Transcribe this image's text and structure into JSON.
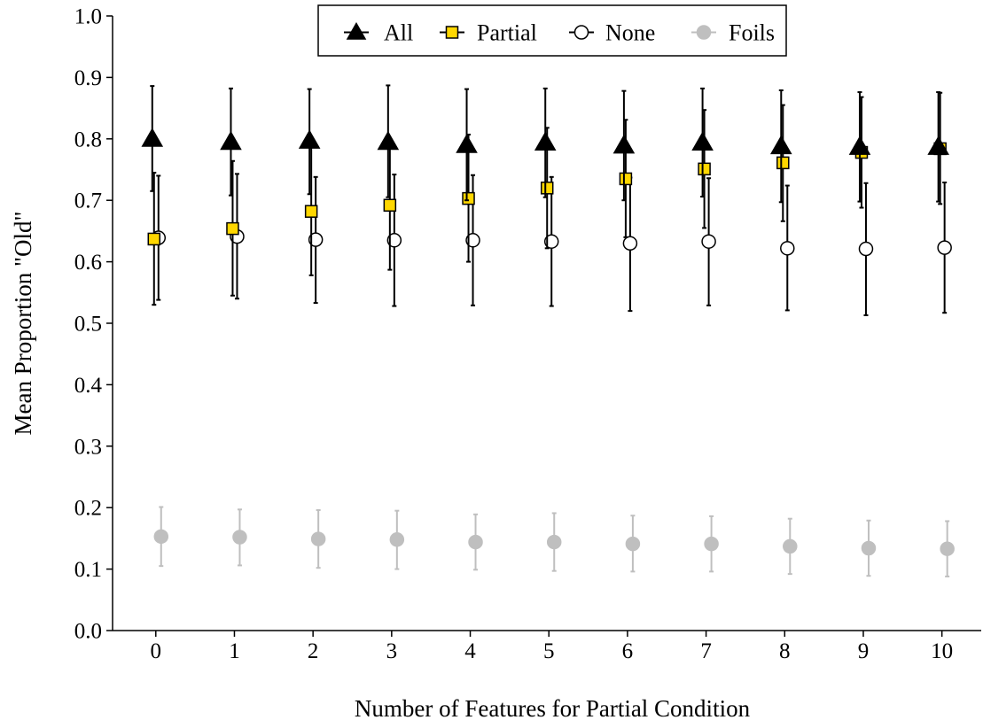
{
  "chart_data": {
    "type": "scatter",
    "title": "",
    "xlabel": "Number of Features for Partial Condition",
    "ylabel": "Mean Proportion \"Old\"",
    "x": [
      0,
      1,
      2,
      3,
      4,
      5,
      6,
      7,
      8,
      9,
      10
    ],
    "xlim": [
      -0.55,
      10.5
    ],
    "ylim": [
      0.0,
      1.0
    ],
    "xticks": [
      "0",
      "1",
      "2",
      "3",
      "4",
      "5",
      "6",
      "7",
      "8",
      "9",
      "10"
    ],
    "yticks": [
      "0.0",
      "0.1",
      "0.2",
      "0.3",
      "0.4",
      "0.5",
      "0.6",
      "0.7",
      "0.8",
      "0.9",
      "1.0"
    ],
    "grid": false,
    "legend_position": "top-center",
    "series": [
      {
        "name": "All",
        "marker": "triangle",
        "color": "#000000",
        "fill": "#000000",
        "values": [
          0.8,
          0.795,
          0.797,
          0.795,
          0.79,
          0.794,
          0.789,
          0.794,
          0.788,
          0.787,
          0.787
        ],
        "err_low": [
          0.715,
          0.708,
          0.71,
          0.705,
          0.7,
          0.705,
          0.7,
          0.706,
          0.697,
          0.698,
          0.698
        ],
        "err_high": [
          0.886,
          0.882,
          0.881,
          0.887,
          0.881,
          0.882,
          0.878,
          0.882,
          0.879,
          0.876,
          0.876
        ]
      },
      {
        "name": "Partial",
        "marker": "square",
        "color": "#000000",
        "fill": "#ffd700",
        "values": [
          0.637,
          0.654,
          0.682,
          0.692,
          0.703,
          0.72,
          0.735,
          0.751,
          0.761,
          0.778,
          0.784
        ],
        "err_low": [
          0.53,
          0.545,
          0.578,
          0.587,
          0.6,
          0.622,
          0.64,
          0.655,
          0.666,
          0.688,
          0.694
        ],
        "err_high": [
          0.745,
          0.764,
          0.788,
          0.798,
          0.807,
          0.818,
          0.831,
          0.847,
          0.855,
          0.868,
          0.875
        ]
      },
      {
        "name": "None",
        "marker": "circle",
        "color": "#000000",
        "fill": "#ffffff",
        "values": [
          0.639,
          0.641,
          0.636,
          0.635,
          0.635,
          0.633,
          0.63,
          0.633,
          0.622,
          0.621,
          0.623
        ],
        "err_low": [
          0.538,
          0.54,
          0.533,
          0.528,
          0.529,
          0.528,
          0.52,
          0.529,
          0.521,
          0.513,
          0.517
        ],
        "err_high": [
          0.74,
          0.743,
          0.738,
          0.742,
          0.741,
          0.738,
          0.737,
          0.736,
          0.724,
          0.728,
          0.729
        ]
      },
      {
        "name": "Foils",
        "marker": "circle",
        "color": "#bfbfbf",
        "fill": "#bfbfbf",
        "values": [
          0.153,
          0.152,
          0.149,
          0.148,
          0.144,
          0.144,
          0.141,
          0.141,
          0.137,
          0.134,
          0.133
        ],
        "err_low": [
          0.105,
          0.106,
          0.102,
          0.1,
          0.099,
          0.097,
          0.096,
          0.096,
          0.092,
          0.089,
          0.088
        ],
        "err_high": [
          0.201,
          0.197,
          0.196,
          0.195,
          0.189,
          0.191,
          0.187,
          0.186,
          0.182,
          0.179,
          0.178
        ]
      }
    ]
  }
}
